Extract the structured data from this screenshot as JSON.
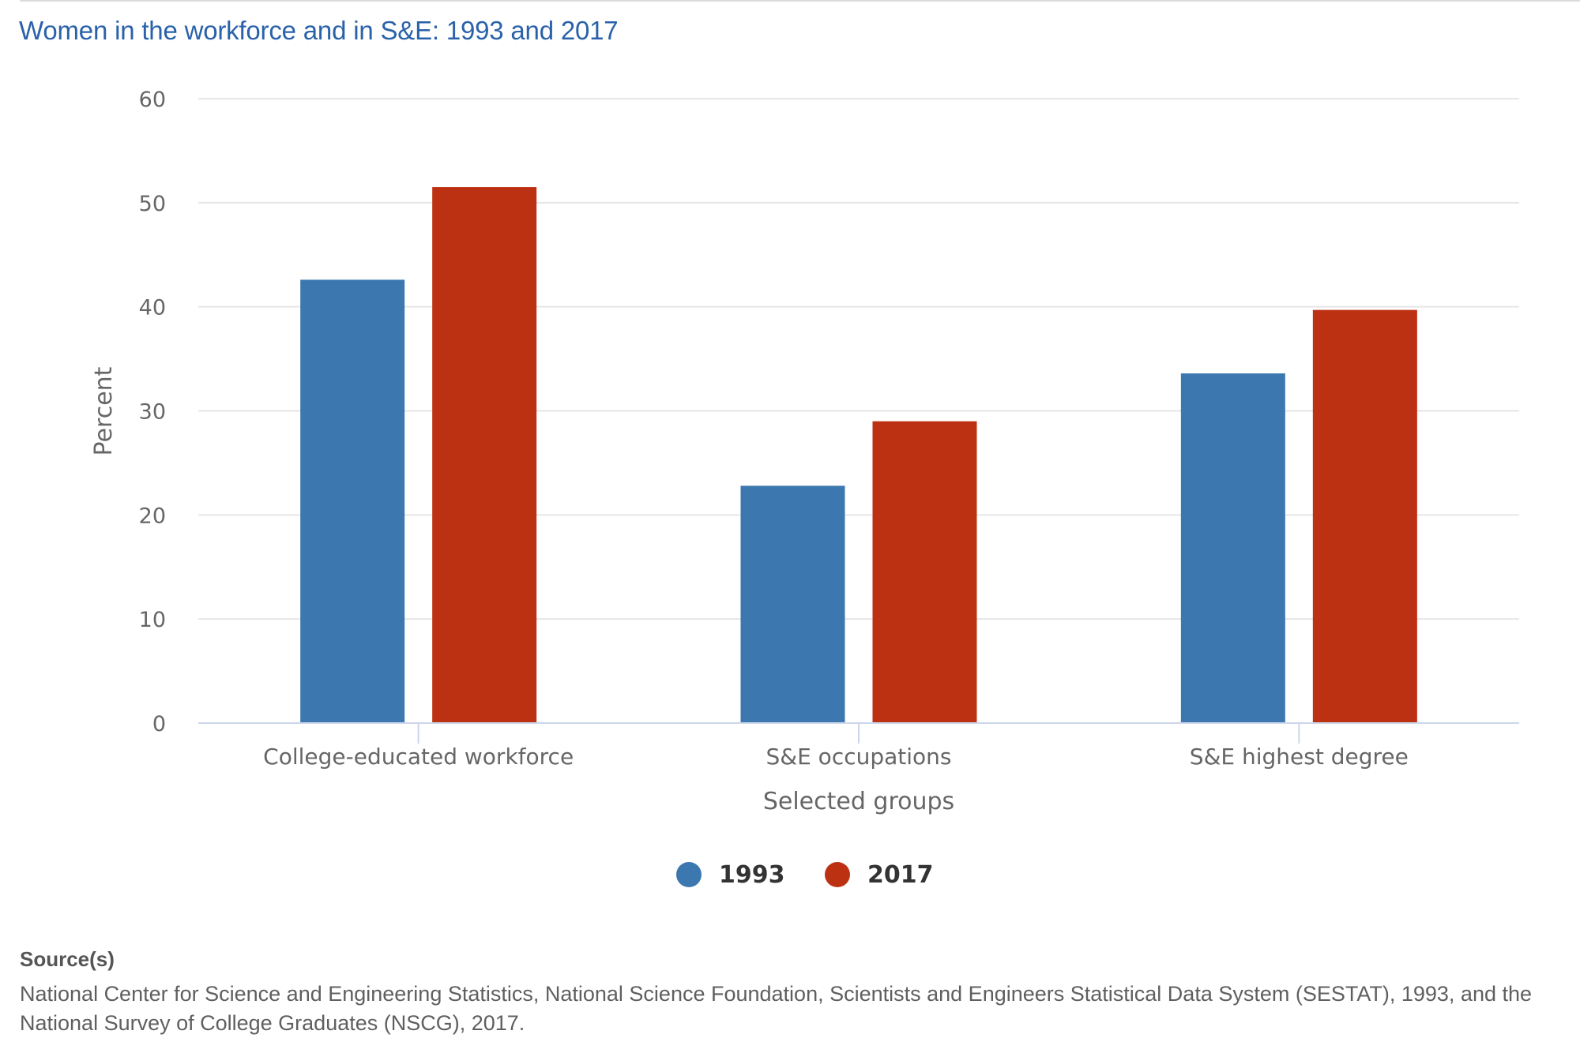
{
  "title": "Women in the workforce and in S&E: 1993 and 2017",
  "colors": {
    "series_1993": "#3c77b0",
    "series_2017": "#bd3113",
    "title": "#2a62a9",
    "gridline": "#e6e6e6",
    "axis": "#ccd6eb"
  },
  "chart_data": {
    "type": "bar",
    "title": "Women in the workforce and in S&E: 1993 and 2017",
    "xlabel": "Selected groups",
    "ylabel": "Percent",
    "categories": [
      "College-educated workforce",
      "S&E occupations",
      "S&E highest degree"
    ],
    "series": [
      {
        "name": "1993",
        "values": [
          42.6,
          22.8,
          33.6
        ]
      },
      {
        "name": "2017",
        "values": [
          51.5,
          29.0,
          39.7
        ]
      }
    ],
    "ylim": [
      0,
      60
    ],
    "yticks": [
      0,
      10,
      20,
      30,
      40,
      50,
      60
    ],
    "grid": true,
    "legend_position": "bottom-center"
  },
  "legend": [
    {
      "label": "1993"
    },
    {
      "label": "2017"
    }
  ],
  "source": {
    "heading": "Source(s)",
    "text": "National Center for Science and Engineering Statistics, National Science Foundation, Scientists and Engineers Statistical Data System (SESTAT), 1993, and the National Survey of College Graduates (NSCG), 2017."
  }
}
